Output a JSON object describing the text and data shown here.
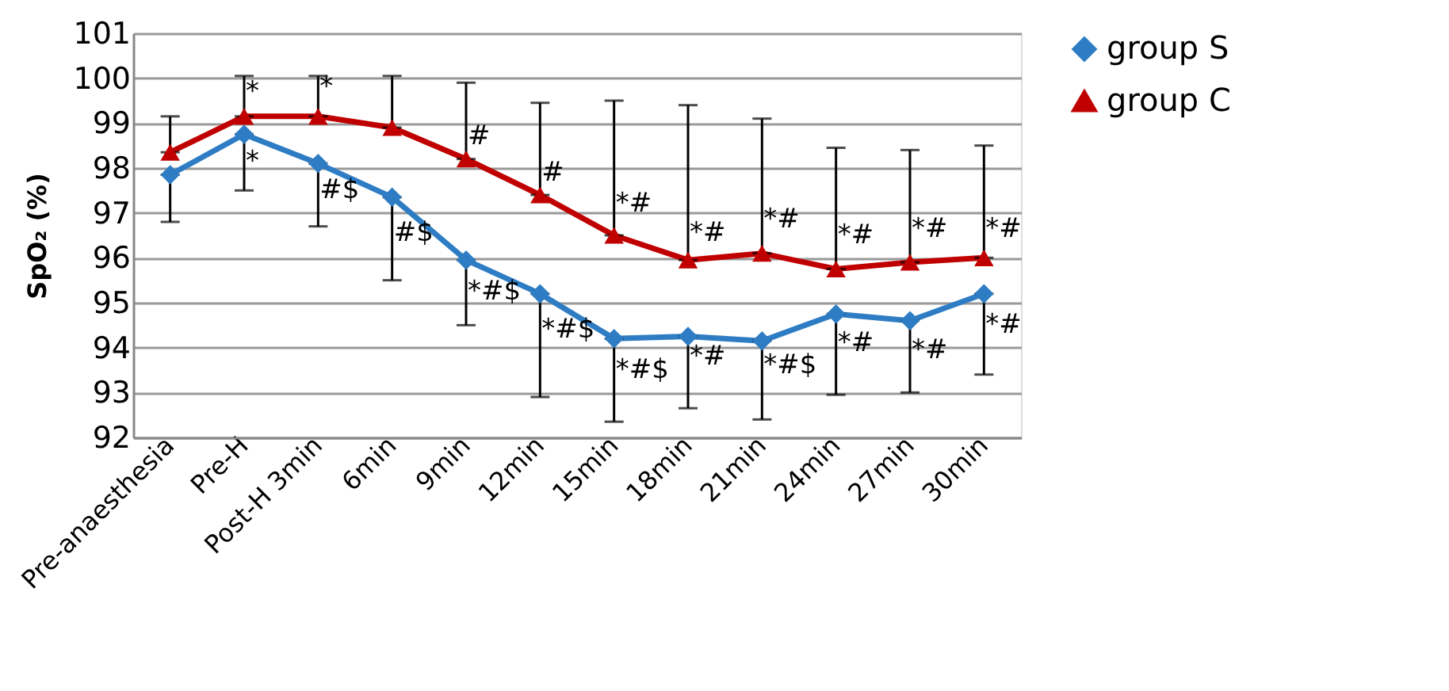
{
  "chart_data": {
    "type": "line",
    "ylabel": "SpO₂ (%)",
    "categories": [
      "Pre-anaesthesia",
      "Pre-H",
      "Post-H 3min",
      "6min",
      "9min",
      "12min",
      "15min",
      "18min",
      "21min",
      "24min",
      "27min",
      "30min"
    ],
    "series": [
      {
        "name": "group S",
        "color": "#2e7dc4",
        "marker": "diamond",
        "values": [
          97.85,
          98.75,
          98.1,
          97.35,
          95.95,
          95.2,
          94.2,
          94.25,
          94.15,
          94.75,
          94.6,
          95.2
        ],
        "errors": [
          [
            96.8,
            97.85
          ],
          [
            97.5,
            98.75
          ],
          [
            96.7,
            98.1
          ],
          [
            95.5,
            97.35
          ],
          [
            94.5,
            95.95
          ],
          [
            92.9,
            95.2
          ],
          [
            92.35,
            94.2
          ],
          [
            92.65,
            94.25
          ],
          [
            92.4,
            94.15
          ],
          [
            92.95,
            94.75
          ],
          [
            93.0,
            94.6
          ],
          [
            93.4,
            95.2
          ]
        ]
      },
      {
        "name": "group C",
        "color": "#c00000",
        "marker": "triangle",
        "values": [
          98.35,
          99.15,
          99.15,
          98.9,
          98.2,
          97.4,
          96.5,
          95.95,
          96.1,
          95.75,
          95.9,
          96.0
        ],
        "errors": [
          [
            98.35,
            99.15
          ],
          [
            99.15,
            100.05
          ],
          [
            99.15,
            100.05
          ],
          [
            98.9,
            100.05
          ],
          [
            98.2,
            99.9
          ],
          [
            97.4,
            99.45
          ],
          [
            96.5,
            99.5
          ],
          [
            95.95,
            99.4
          ],
          [
            96.1,
            99.1
          ],
          [
            95.75,
            98.45
          ],
          [
            95.9,
            98.4
          ],
          [
            96.0,
            98.5
          ]
        ]
      }
    ],
    "ylim": [
      92,
      101
    ],
    "yticks": [
      92,
      93,
      94,
      95,
      96,
      97,
      98,
      99,
      100,
      101
    ],
    "grid": "y",
    "legend": "right",
    "line_style": "solid",
    "annotations": [
      {
        "text": "*",
        "x": "Pre-H",
        "y": 99.7
      },
      {
        "text": "*",
        "x": "Pre-H",
        "y": 98.15
      },
      {
        "text": "*",
        "x": "Post-H 3min",
        "y": 99.8
      },
      {
        "text": "#$",
        "x": "Post-H 3min",
        "y": 97.5
      },
      {
        "text": "#$",
        "x": "6min",
        "y": 96.55
      },
      {
        "text": "#",
        "x": "9min",
        "y": 98.7
      },
      {
        "text": "*#$",
        "x": "9min",
        "y": 95.25
      },
      {
        "text": "#",
        "x": "12min",
        "y": 97.9
      },
      {
        "text": "*#$",
        "x": "12min",
        "y": 94.4
      },
      {
        "text": "*#",
        "x": "15min",
        "y": 97.2
      },
      {
        "text": "*#$",
        "x": "15min",
        "y": 93.5
      },
      {
        "text": "*#",
        "x": "18min",
        "y": 96.55
      },
      {
        "text": "*#",
        "x": "18min",
        "y": 93.8
      },
      {
        "text": "*#",
        "x": "21min",
        "y": 96.85
      },
      {
        "text": "*#$",
        "x": "21min",
        "y": 93.6
      },
      {
        "text": "*#",
        "x": "24min",
        "y": 96.5
      },
      {
        "text": "*#",
        "x": "24min",
        "y": 94.1
      },
      {
        "text": "*#",
        "x": "27min",
        "y": 96.65
      },
      {
        "text": "*#",
        "x": "27min",
        "y": 93.95
      },
      {
        "text": "*#",
        "x": "30min",
        "y": 96.65
      },
      {
        "text": "*#",
        "x": "30min",
        "y": 94.5
      }
    ]
  }
}
